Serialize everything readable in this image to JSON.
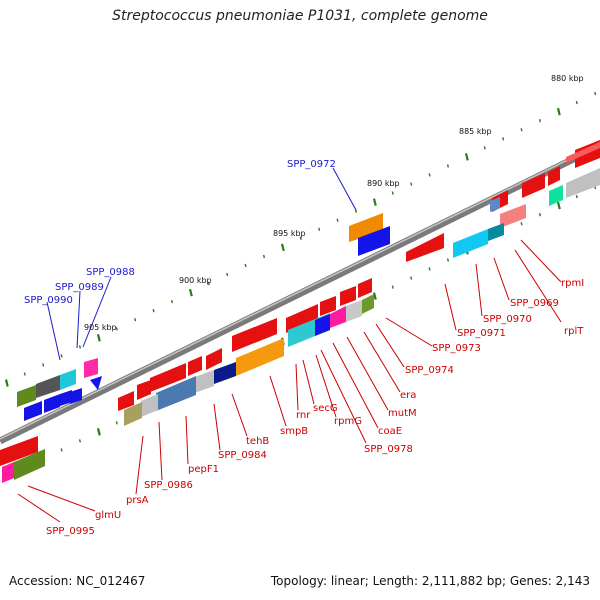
{
  "title": "Streptococcus pneumoniae P1031, complete genome",
  "accession": "Accession: NC_012467",
  "topology": "Topology: linear; Length: 2,111,882 bp; Genes: 2,143",
  "colors": {
    "backbone": "#8a8a8a",
    "tick": "#2a7a1a",
    "label_red": "#cc0000",
    "label_blue": "#1a1acc"
  },
  "ticks": [
    "880 kbp",
    "885 kbp",
    "890 kbp",
    "895 kbp",
    "900 kbp",
    "905 kbp"
  ],
  "labels_blue": [
    "SPP_0972",
    "SPP_0988",
    "SPP_0989",
    "SPP_0990"
  ],
  "labels_red": [
    "rpmI",
    "rplT",
    "SPP_0969",
    "SPP_0970",
    "SPP_0971",
    "SPP_0973",
    "SPP_0974",
    "era",
    "mutM",
    "coaE",
    "SPP_0978",
    "rpmG",
    "secG",
    "rnr",
    "smpB",
    "tehB",
    "SPP_0984",
    "pepF1",
    "SPP_0986",
    "prsA",
    "glmU",
    "SPP_0995"
  ]
}
